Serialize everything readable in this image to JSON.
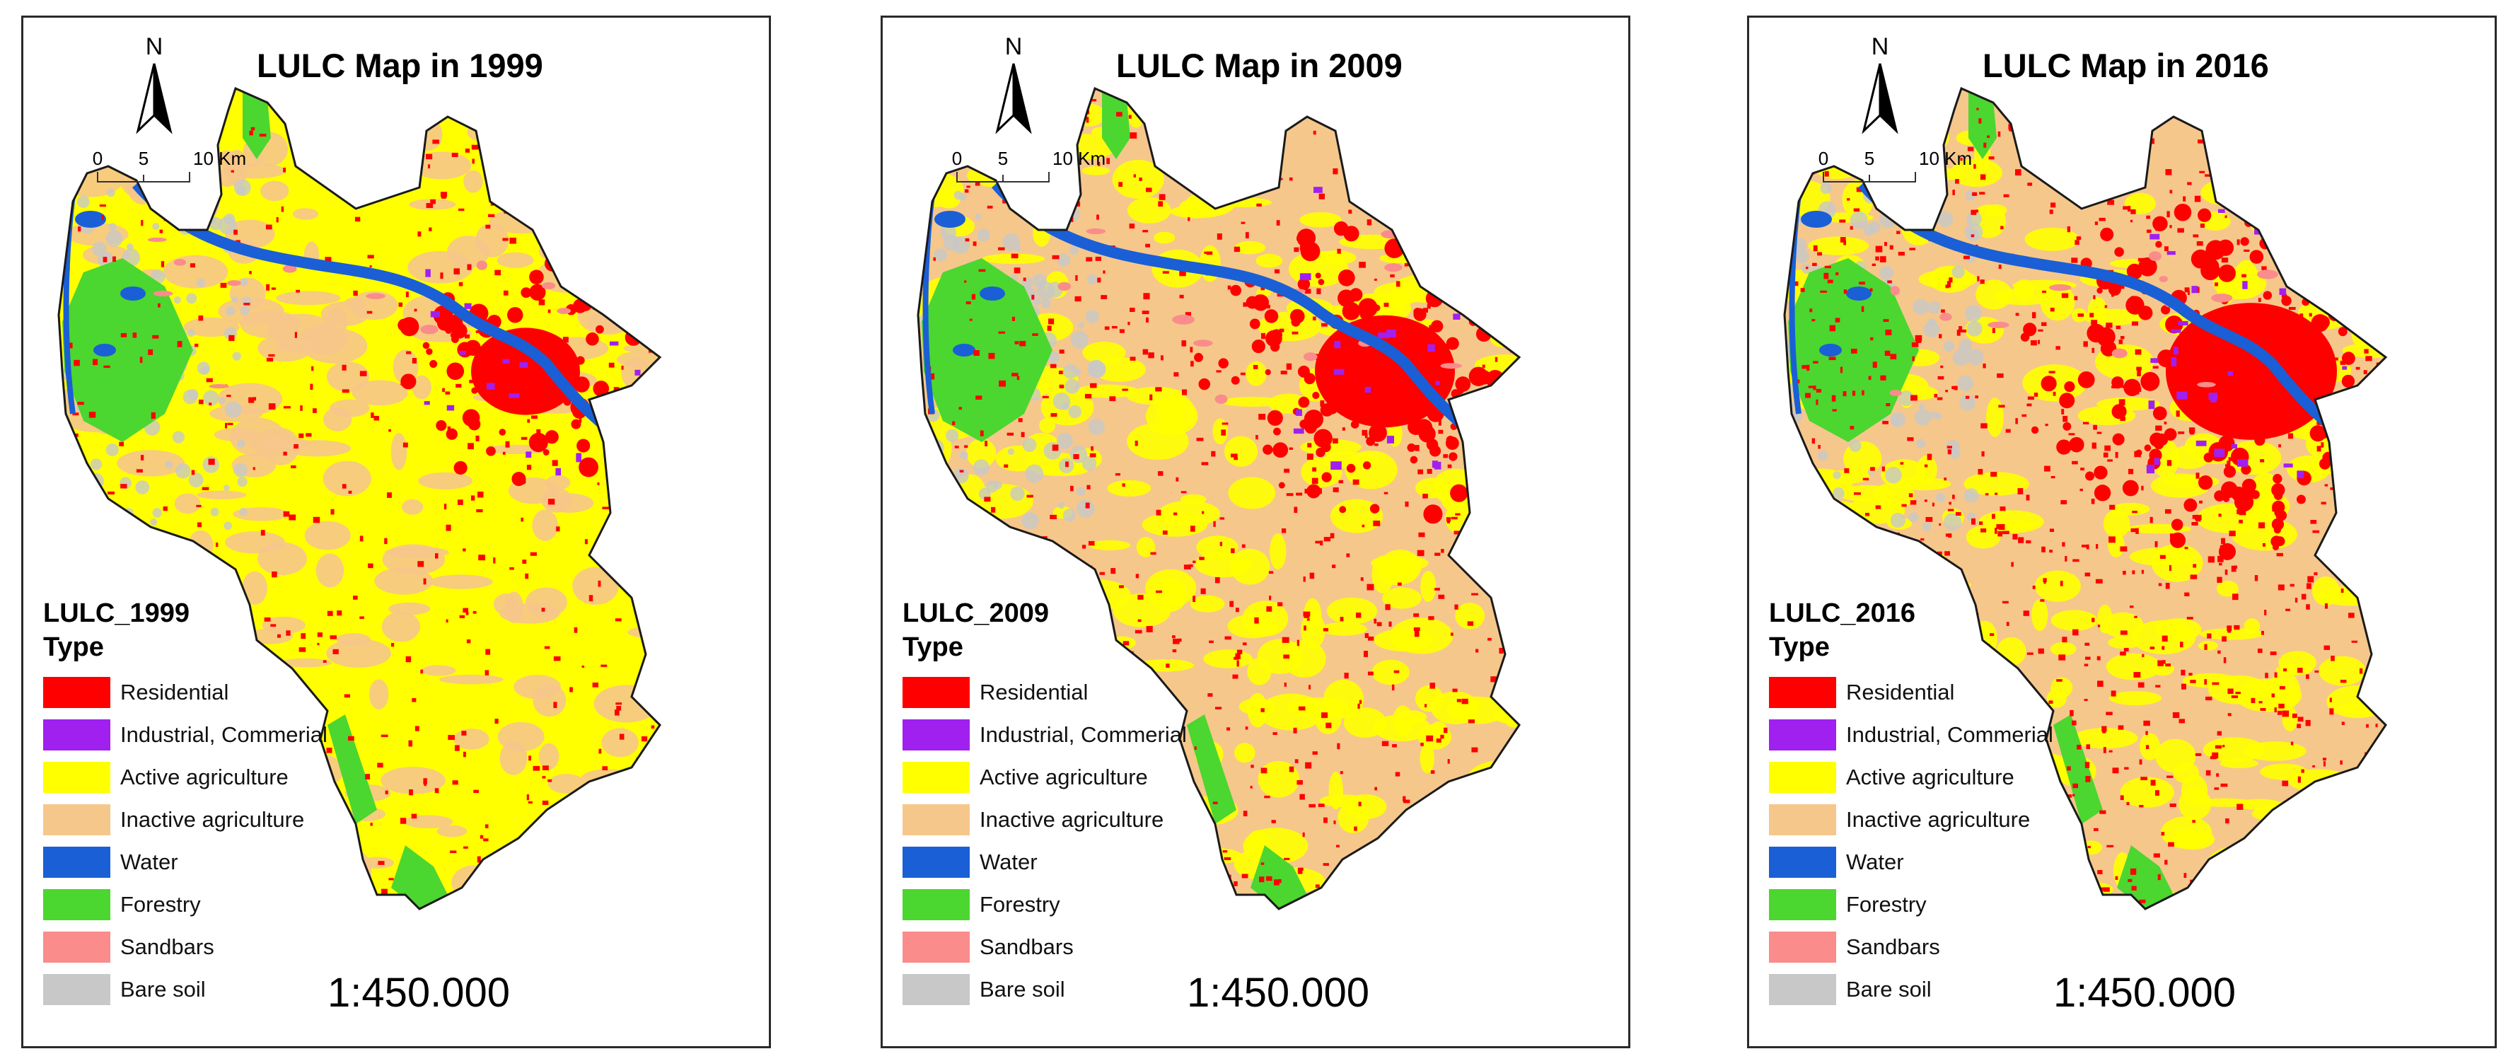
{
  "colors": {
    "residential": "#ff0000",
    "industrial": "#a020f0",
    "active": "#ffff00",
    "inactive": "#f6c78b",
    "water": "#1a5fd6",
    "forestry": "#4cd630",
    "sandbars": "#fa8c8c",
    "bare": "#c8c8c8",
    "outline": "#1a1a1a"
  },
  "common": {
    "north_label": "N",
    "scale_ticks": [
      "0",
      "5",
      "10 Km"
    ],
    "legend_subtitle": "Type",
    "scale_text": "1:450.000",
    "legend_items": [
      {
        "key": "residential",
        "label": "Residential"
      },
      {
        "key": "industrial",
        "label": "Industrial, Commerial"
      },
      {
        "key": "active",
        "label": "Active agriculture"
      },
      {
        "key": "inactive",
        "label": "Inactive agriculture"
      },
      {
        "key": "water",
        "label": "Water"
      },
      {
        "key": "forestry",
        "label": "Forestry"
      },
      {
        "key": "sandbars",
        "label": "Sandbars"
      },
      {
        "key": "bare",
        "label": "Bare soil"
      }
    ]
  },
  "maps": [
    {
      "title": "LULC Map in 1999",
      "legend_title": "LULC_1999",
      "base": "active",
      "urban_level": 1
    },
    {
      "title": "LULC Map in 2009",
      "legend_title": "LULC_2009",
      "base": "inactive",
      "urban_level": 2
    },
    {
      "title": "LULC Map in 2016",
      "legend_title": "LULC_2016",
      "base": "inactive",
      "urban_level": 3
    }
  ]
}
